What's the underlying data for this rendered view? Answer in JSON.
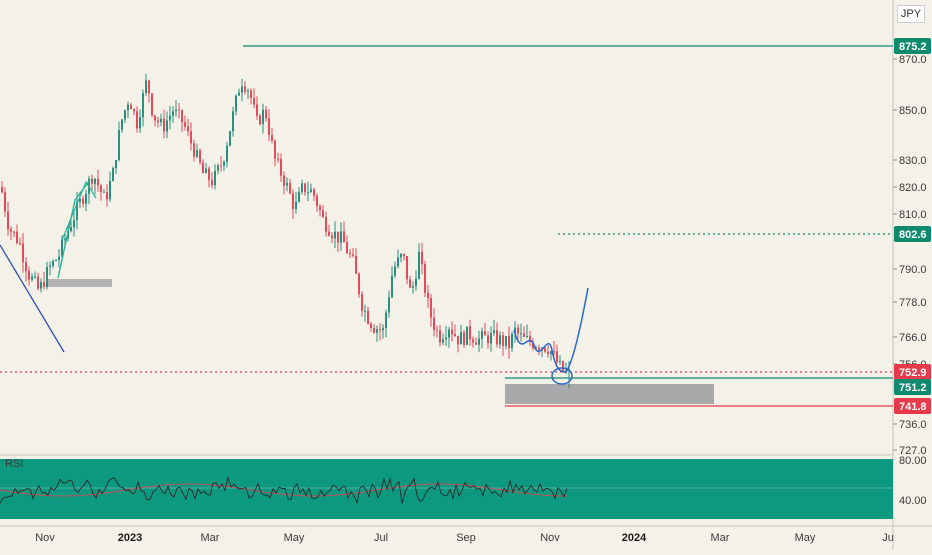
{
  "chart_data": {
    "type": "candlestick",
    "currency_label": "JPY",
    "price_axis": {
      "ticks": [
        870.0,
        850.0,
        830.0,
        820.0,
        810.0,
        790.0,
        778.0,
        766.0,
        756.0,
        736.0,
        727.0
      ],
      "tick_labels": [
        "870.0",
        "850.0",
        "830.0",
        "820.0",
        "810.0",
        "790.0",
        "778.0",
        "766.0",
        "756.0",
        "736.0",
        "727.0"
      ]
    },
    "time_axis": {
      "labels": [
        "Nov",
        "2023",
        "Mar",
        "May",
        "Jul",
        "Sep",
        "Nov",
        "2024",
        "Mar",
        "May",
        "Ju"
      ],
      "bold_labels": [
        "2023",
        "2024"
      ]
    },
    "price_levels": [
      {
        "label": "875.2",
        "value": 875.2,
        "color": "#0f8a6e",
        "style": "solid"
      },
      {
        "label": "802.6",
        "value": 802.6,
        "color": "#0f8a6e",
        "style": "dotted"
      },
      {
        "label": "752.9",
        "value": 752.9,
        "color": "#e53a4c",
        "style": "dotted"
      },
      {
        "label": "751.2",
        "value": 751.2,
        "color": "#0f8a6e",
        "style": "solid"
      },
      {
        "label": "741.8",
        "value": 741.8,
        "color": "#e53a4c",
        "style": "solid"
      }
    ],
    "zones": [
      {
        "name": "support-zone",
        "from": 741.8,
        "to": 750.0,
        "color": "#a9a9ab"
      },
      {
        "name": "demand-box-left",
        "from": 782.0,
        "to": 786.0,
        "color": "#b4b4b6"
      }
    ],
    "rsi": {
      "label": "RSI",
      "ticks": [
        "80.00",
        "40.00"
      ],
      "panel_color": "#0d9980",
      "line_color": "#2a2a2a",
      "ma_color": "#c0505a"
    },
    "colors": {
      "up_candle": "#2a8f7e",
      "down_candle": "#e54a5a",
      "trend_line": "#2f4fb5",
      "projection_line": "#2a67c9",
      "arrow": "#2bb39a"
    }
  }
}
